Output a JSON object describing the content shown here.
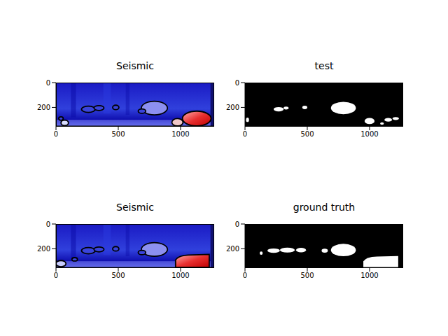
{
  "chart_data": [
    {
      "type": "image",
      "title": "Seismic",
      "xlim": [
        0,
        1270
      ],
      "ylim": [
        0,
        350
      ],
      "xticks": [
        0,
        500,
        1000
      ],
      "yticks": [
        0,
        200
      ]
    },
    {
      "type": "image",
      "title": "test",
      "xlim": [
        0,
        1270
      ],
      "ylim": [
        0,
        350
      ],
      "xticks": [
        0,
        500,
        1000
      ],
      "yticks": [
        0,
        200
      ]
    },
    {
      "type": "image",
      "title": "Seismic",
      "xlim": [
        0,
        1270
      ],
      "ylim": [
        0,
        350
      ],
      "xticks": [
        0,
        500,
        1000
      ],
      "yticks": [
        0,
        200
      ]
    },
    {
      "type": "image",
      "title": "ground truth",
      "xlim": [
        0,
        1270
      ],
      "ylim": [
        0,
        350
      ],
      "xticks": [
        0,
        500,
        1000
      ],
      "yticks": [
        0,
        200
      ]
    }
  ]
}
